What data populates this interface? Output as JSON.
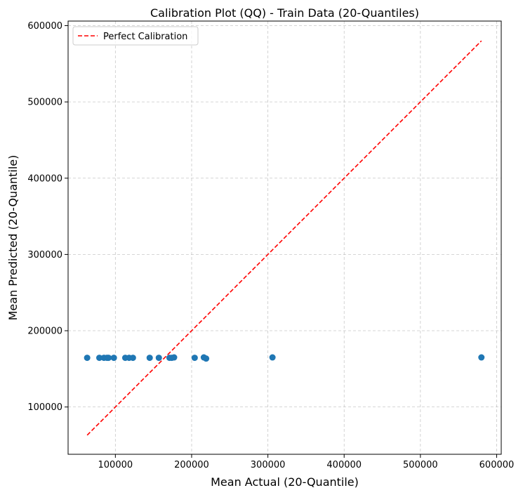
{
  "chart_data": {
    "type": "scatter",
    "title": "Calibration Plot (QQ) - Train Data (20-Quantiles)",
    "xlabel": "Mean Actual (20-Quantile)",
    "ylabel": "Mean Predicted (20-Quantile)",
    "xlim": [
      38000,
      606000
    ],
    "ylim": [
      38000,
      606000
    ],
    "xticks": [
      100000,
      200000,
      300000,
      400000,
      500000,
      600000
    ],
    "yticks": [
      100000,
      200000,
      300000,
      400000,
      500000,
      600000
    ],
    "xtick_labels": [
      "100000",
      "200000",
      "300000",
      "400000",
      "500000",
      "600000"
    ],
    "ytick_labels": [
      "100000",
      "200000",
      "300000",
      "400000",
      "500000",
      "600000"
    ],
    "grid": true,
    "legend": "top-left",
    "series": [
      {
        "kind": "scatter",
        "color": "#1f77b4",
        "x": [
          63000,
          79000,
          85000,
          89000,
          91000,
          98000,
          113000,
          118000,
          123000,
          145000,
          157000,
          171000,
          174000,
          177000,
          204000,
          216000,
          219000,
          306000,
          580000
        ],
        "y": [
          164500,
          164500,
          164500,
          164500,
          164500,
          164500,
          164500,
          164500,
          164500,
          164500,
          164500,
          164500,
          164500,
          165000,
          164500,
          165000,
          163500,
          165000,
          165000
        ]
      },
      {
        "kind": "line",
        "name": "Perfect Calibration",
        "color": "#ff0000",
        "dash": "dashed",
        "x": [
          63000,
          580000
        ],
        "y": [
          63000,
          580000
        ]
      }
    ]
  }
}
